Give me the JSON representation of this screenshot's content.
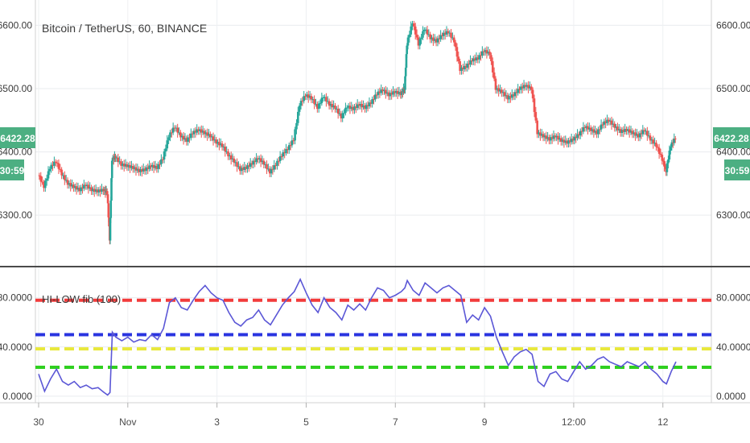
{
  "chart_data": [
    {
      "type": "candlestick",
      "title": "Bitcoin / TetherUS, 60, BINANCE",
      "y_ticks": [
        "6300.00",
        "6400.00",
        "6500.00",
        "6600.00"
      ],
      "y_tick_values": [
        6300,
        6400,
        6500,
        6600
      ],
      "ylim": [
        6220,
        6640
      ],
      "last_price_label": "6422.28",
      "last_price": 6422.28,
      "countdown_label": "30:59",
      "up_color": "#26a69a",
      "down_color": "#ef5350",
      "grid": true,
      "series": [
        {
          "x": 0.0,
          "y": 6365
        },
        {
          "x": 0.05,
          "y": 6345
        },
        {
          "x": 0.1,
          "y": 6375
        },
        {
          "x": 0.15,
          "y": 6385
        },
        {
          "x": 0.2,
          "y": 6365
        },
        {
          "x": 0.25,
          "y": 6350
        },
        {
          "x": 0.3,
          "y": 6345
        },
        {
          "x": 0.35,
          "y": 6340
        },
        {
          "x": 0.4,
          "y": 6348
        },
        {
          "x": 0.45,
          "y": 6340
        },
        {
          "x": 0.5,
          "y": 6338
        },
        {
          "x": 0.55,
          "y": 6340
        },
        {
          "x": 0.58,
          "y": 6335
        },
        {
          "x": 0.6,
          "y": 6262
        },
        {
          "x": 0.62,
          "y": 6388
        },
        {
          "x": 0.65,
          "y": 6392
        },
        {
          "x": 0.7,
          "y": 6380
        },
        {
          "x": 0.75,
          "y": 6378
        },
        {
          "x": 0.8,
          "y": 6375
        },
        {
          "x": 0.85,
          "y": 6370
        },
        {
          "x": 0.9,
          "y": 6372
        },
        {
          "x": 0.95,
          "y": 6378
        },
        {
          "x": 1.0,
          "y": 6375
        },
        {
          "x": 1.05,
          "y": 6390
        },
        {
          "x": 1.1,
          "y": 6425
        },
        {
          "x": 1.15,
          "y": 6440
        },
        {
          "x": 1.2,
          "y": 6425
        },
        {
          "x": 1.25,
          "y": 6418
        },
        {
          "x": 1.3,
          "y": 6430
        },
        {
          "x": 1.35,
          "y": 6435
        },
        {
          "x": 1.4,
          "y": 6430
        },
        {
          "x": 1.45,
          "y": 6425
        },
        {
          "x": 1.5,
          "y": 6415
        },
        {
          "x": 1.55,
          "y": 6410
        },
        {
          "x": 1.6,
          "y": 6395
        },
        {
          "x": 1.65,
          "y": 6385
        },
        {
          "x": 1.7,
          "y": 6372
        },
        {
          "x": 1.75,
          "y": 6375
        },
        {
          "x": 1.8,
          "y": 6382
        },
        {
          "x": 1.85,
          "y": 6390
        },
        {
          "x": 1.9,
          "y": 6382
        },
        {
          "x": 1.95,
          "y": 6368
        },
        {
          "x": 2.0,
          "y": 6380
        },
        {
          "x": 2.05,
          "y": 6395
        },
        {
          "x": 2.1,
          "y": 6405
        },
        {
          "x": 2.15,
          "y": 6420
        },
        {
          "x": 2.2,
          "y": 6475
        },
        {
          "x": 2.25,
          "y": 6490
        },
        {
          "x": 2.3,
          "y": 6485
        },
        {
          "x": 2.35,
          "y": 6470
        },
        {
          "x": 2.4,
          "y": 6488
        },
        {
          "x": 2.45,
          "y": 6475
        },
        {
          "x": 2.5,
          "y": 6470
        },
        {
          "x": 2.55,
          "y": 6455
        },
        {
          "x": 2.6,
          "y": 6472
        },
        {
          "x": 2.65,
          "y": 6468
        },
        {
          "x": 2.7,
          "y": 6475
        },
        {
          "x": 2.75,
          "y": 6470
        },
        {
          "x": 2.8,
          "y": 6478
        },
        {
          "x": 2.85,
          "y": 6492
        },
        {
          "x": 2.9,
          "y": 6498
        },
        {
          "x": 2.95,
          "y": 6490
        },
        {
          "x": 3.0,
          "y": 6495
        },
        {
          "x": 3.05,
          "y": 6492
        },
        {
          "x": 3.08,
          "y": 6500
        },
        {
          "x": 3.1,
          "y": 6570
        },
        {
          "x": 3.15,
          "y": 6605
        },
        {
          "x": 3.2,
          "y": 6570
        },
        {
          "x": 3.25,
          "y": 6595
        },
        {
          "x": 3.3,
          "y": 6580
        },
        {
          "x": 3.35,
          "y": 6575
        },
        {
          "x": 3.4,
          "y": 6585
        },
        {
          "x": 3.45,
          "y": 6590
        },
        {
          "x": 3.5,
          "y": 6575
        },
        {
          "x": 3.55,
          "y": 6530
        },
        {
          "x": 3.6,
          "y": 6535
        },
        {
          "x": 3.65,
          "y": 6545
        },
        {
          "x": 3.7,
          "y": 6548
        },
        {
          "x": 3.75,
          "y": 6560
        },
        {
          "x": 3.8,
          "y": 6555
        },
        {
          "x": 3.85,
          "y": 6500
        },
        {
          "x": 3.9,
          "y": 6495
        },
        {
          "x": 3.95,
          "y": 6485
        },
        {
          "x": 4.0,
          "y": 6490
        },
        {
          "x": 4.05,
          "y": 6500
        },
        {
          "x": 4.1,
          "y": 6505
        },
        {
          "x": 4.15,
          "y": 6500
        },
        {
          "x": 4.2,
          "y": 6430
        },
        {
          "x": 4.25,
          "y": 6425
        },
        {
          "x": 4.3,
          "y": 6420
        },
        {
          "x": 4.35,
          "y": 6425
        },
        {
          "x": 4.4,
          "y": 6418
        },
        {
          "x": 4.45,
          "y": 6415
        },
        {
          "x": 4.5,
          "y": 6420
        },
        {
          "x": 4.55,
          "y": 6428
        },
        {
          "x": 4.6,
          "y": 6440
        },
        {
          "x": 4.65,
          "y": 6435
        },
        {
          "x": 4.7,
          "y": 6430
        },
        {
          "x": 4.75,
          "y": 6445
        },
        {
          "x": 4.8,
          "y": 6450
        },
        {
          "x": 4.85,
          "y": 6440
        },
        {
          "x": 4.9,
          "y": 6432
        },
        {
          "x": 4.95,
          "y": 6435
        },
        {
          "x": 5.0,
          "y": 6430
        },
        {
          "x": 5.05,
          "y": 6425
        },
        {
          "x": 5.1,
          "y": 6435
        },
        {
          "x": 5.15,
          "y": 6420
        },
        {
          "x": 5.2,
          "y": 6410
        },
        {
          "x": 5.25,
          "y": 6388
        },
        {
          "x": 5.28,
          "y": 6370
        },
        {
          "x": 5.32,
          "y": 6410
        },
        {
          "x": 5.36,
          "y": 6422
        }
      ]
    },
    {
      "type": "line",
      "title": "HI-LOW fib (100)",
      "y_ticks": [
        "0.0000",
        "40.0000",
        "80.0000"
      ],
      "y_tick_values": [
        0,
        40,
        80
      ],
      "ylim": [
        -4,
        104
      ],
      "x_ticks": [
        "30",
        "Nov",
        "3",
        "5",
        "7",
        "9",
        "12:00",
        "12"
      ],
      "x_tick_values": [
        0,
        0.75,
        1.5,
        2.25,
        3.0,
        3.75,
        4.5,
        5.25
      ],
      "levels": [
        {
          "value": 78,
          "color": "#f23b3b"
        },
        {
          "value": 50,
          "color": "#2a34e0"
        },
        {
          "value": 38.5,
          "color": "#e8e83a"
        },
        {
          "value": 23.5,
          "color": "#30d020"
        }
      ],
      "line_color": "#5b57d6",
      "series": [
        {
          "x": 0.0,
          "y": 18
        },
        {
          "x": 0.05,
          "y": 4
        },
        {
          "x": 0.1,
          "y": 14
        },
        {
          "x": 0.15,
          "y": 22
        },
        {
          "x": 0.2,
          "y": 12
        },
        {
          "x": 0.25,
          "y": 9
        },
        {
          "x": 0.3,
          "y": 12
        },
        {
          "x": 0.35,
          "y": 7
        },
        {
          "x": 0.4,
          "y": 9
        },
        {
          "x": 0.45,
          "y": 6
        },
        {
          "x": 0.5,
          "y": 7
        },
        {
          "x": 0.55,
          "y": 3
        },
        {
          "x": 0.58,
          "y": 1
        },
        {
          "x": 0.6,
          "y": 3
        },
        {
          "x": 0.62,
          "y": 52
        },
        {
          "x": 0.65,
          "y": 48
        },
        {
          "x": 0.7,
          "y": 45
        },
        {
          "x": 0.75,
          "y": 48
        },
        {
          "x": 0.8,
          "y": 44
        },
        {
          "x": 0.85,
          "y": 46
        },
        {
          "x": 0.9,
          "y": 45
        },
        {
          "x": 0.95,
          "y": 50
        },
        {
          "x": 1.0,
          "y": 46
        },
        {
          "x": 1.05,
          "y": 55
        },
        {
          "x": 1.1,
          "y": 76
        },
        {
          "x": 1.15,
          "y": 80
        },
        {
          "x": 1.2,
          "y": 72
        },
        {
          "x": 1.25,
          "y": 70
        },
        {
          "x": 1.3,
          "y": 78
        },
        {
          "x": 1.35,
          "y": 85
        },
        {
          "x": 1.4,
          "y": 90
        },
        {
          "x": 1.45,
          "y": 84
        },
        {
          "x": 1.5,
          "y": 80
        },
        {
          "x": 1.55,
          "y": 78
        },
        {
          "x": 1.6,
          "y": 68
        },
        {
          "x": 1.65,
          "y": 60
        },
        {
          "x": 1.7,
          "y": 57
        },
        {
          "x": 1.75,
          "y": 62
        },
        {
          "x": 1.8,
          "y": 64
        },
        {
          "x": 1.85,
          "y": 70
        },
        {
          "x": 1.9,
          "y": 62
        },
        {
          "x": 1.95,
          "y": 58
        },
        {
          "x": 2.0,
          "y": 66
        },
        {
          "x": 2.05,
          "y": 74
        },
        {
          "x": 2.1,
          "y": 80
        },
        {
          "x": 2.15,
          "y": 85
        },
        {
          "x": 2.2,
          "y": 95
        },
        {
          "x": 2.25,
          "y": 84
        },
        {
          "x": 2.3,
          "y": 74
        },
        {
          "x": 2.35,
          "y": 68
        },
        {
          "x": 2.4,
          "y": 80
        },
        {
          "x": 2.45,
          "y": 72
        },
        {
          "x": 2.5,
          "y": 68
        },
        {
          "x": 2.55,
          "y": 62
        },
        {
          "x": 2.6,
          "y": 74
        },
        {
          "x": 2.65,
          "y": 70
        },
        {
          "x": 2.7,
          "y": 75
        },
        {
          "x": 2.75,
          "y": 70
        },
        {
          "x": 2.8,
          "y": 80
        },
        {
          "x": 2.85,
          "y": 88
        },
        {
          "x": 2.9,
          "y": 86
        },
        {
          "x": 2.95,
          "y": 80
        },
        {
          "x": 3.0,
          "y": 82
        },
        {
          "x": 3.05,
          "y": 85
        },
        {
          "x": 3.08,
          "y": 88
        },
        {
          "x": 3.1,
          "y": 94
        },
        {
          "x": 3.15,
          "y": 86
        },
        {
          "x": 3.2,
          "y": 82
        },
        {
          "x": 3.25,
          "y": 92
        },
        {
          "x": 3.3,
          "y": 88
        },
        {
          "x": 3.35,
          "y": 84
        },
        {
          "x": 3.4,
          "y": 88
        },
        {
          "x": 3.45,
          "y": 90
        },
        {
          "x": 3.5,
          "y": 86
        },
        {
          "x": 3.55,
          "y": 82
        },
        {
          "x": 3.6,
          "y": 60
        },
        {
          "x": 3.65,
          "y": 66
        },
        {
          "x": 3.7,
          "y": 62
        },
        {
          "x": 3.75,
          "y": 72
        },
        {
          "x": 3.8,
          "y": 65
        },
        {
          "x": 3.85,
          "y": 48
        },
        {
          "x": 3.9,
          "y": 36
        },
        {
          "x": 3.95,
          "y": 25
        },
        {
          "x": 4.0,
          "y": 32
        },
        {
          "x": 4.05,
          "y": 36
        },
        {
          "x": 4.1,
          "y": 38
        },
        {
          "x": 4.15,
          "y": 34
        },
        {
          "x": 4.2,
          "y": 12
        },
        {
          "x": 4.25,
          "y": 8
        },
        {
          "x": 4.3,
          "y": 18
        },
        {
          "x": 4.35,
          "y": 20
        },
        {
          "x": 4.4,
          "y": 14
        },
        {
          "x": 4.45,
          "y": 12
        },
        {
          "x": 4.5,
          "y": 20
        },
        {
          "x": 4.55,
          "y": 28
        },
        {
          "x": 4.6,
          "y": 22
        },
        {
          "x": 4.65,
          "y": 25
        },
        {
          "x": 4.7,
          "y": 30
        },
        {
          "x": 4.75,
          "y": 32
        },
        {
          "x": 4.8,
          "y": 28
        },
        {
          "x": 4.85,
          "y": 26
        },
        {
          "x": 4.9,
          "y": 24
        },
        {
          "x": 4.95,
          "y": 28
        },
        {
          "x": 5.0,
          "y": 26
        },
        {
          "x": 5.05,
          "y": 24
        },
        {
          "x": 5.1,
          "y": 28
        },
        {
          "x": 5.15,
          "y": 22
        },
        {
          "x": 5.2,
          "y": 18
        },
        {
          "x": 5.25,
          "y": 12
        },
        {
          "x": 5.28,
          "y": 10
        },
        {
          "x": 5.32,
          "y": 20
        },
        {
          "x": 5.36,
          "y": 28
        }
      ]
    }
  ]
}
